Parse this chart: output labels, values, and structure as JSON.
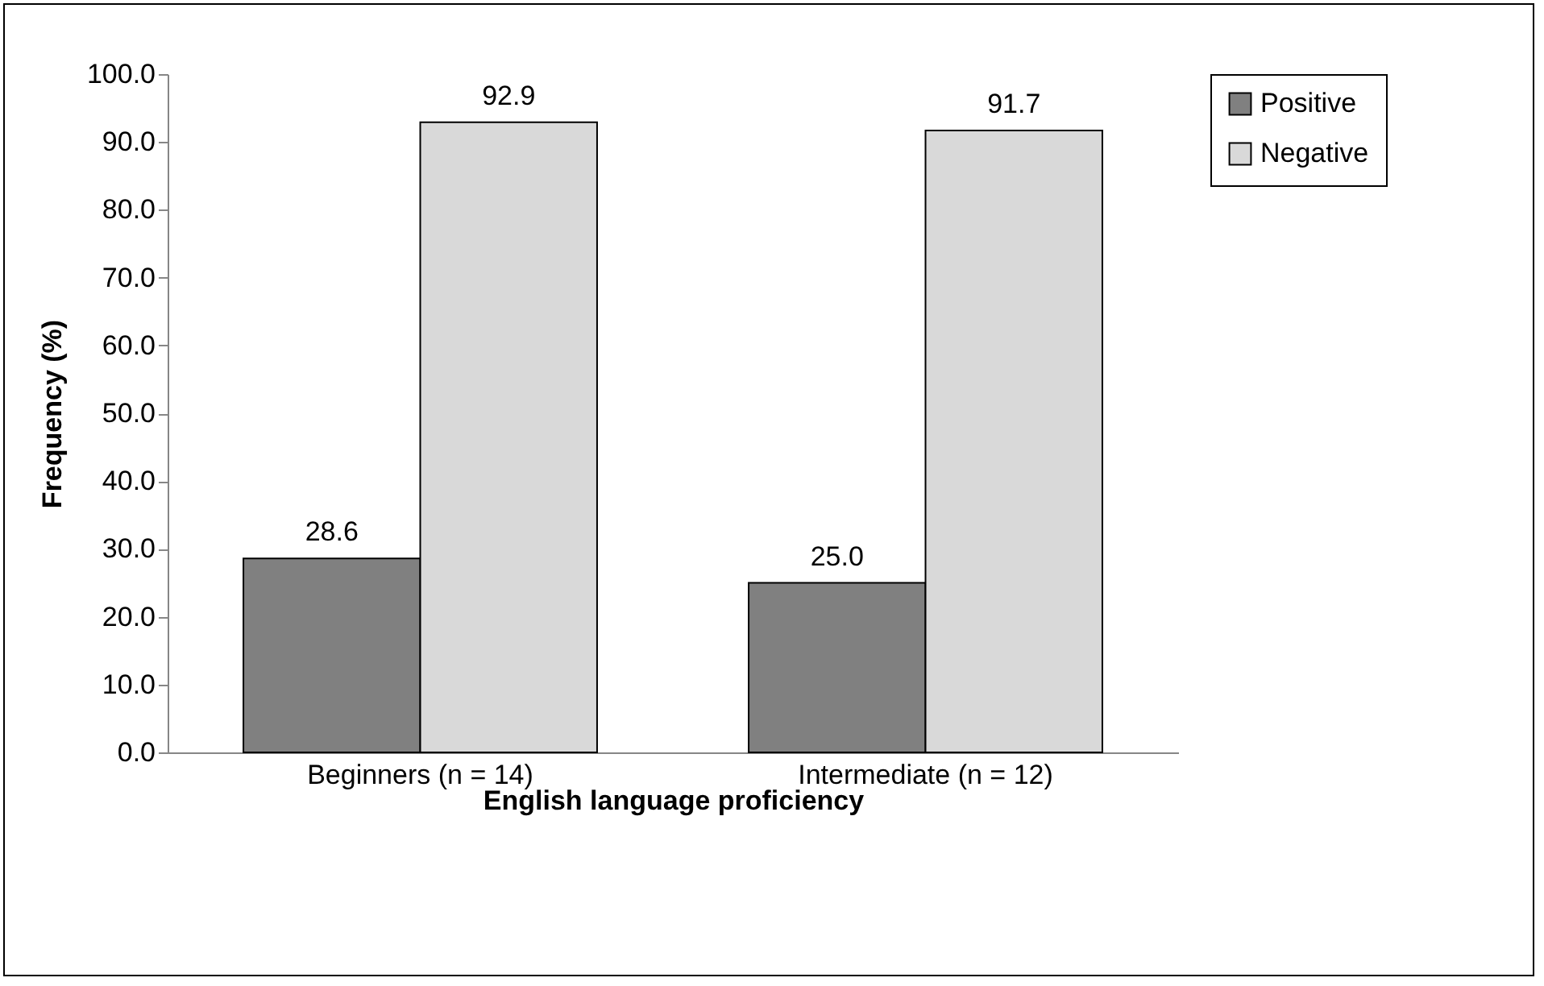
{
  "chart_data": {
    "type": "bar",
    "xlabel": "English language proficiency",
    "ylabel": "Frequency (%)",
    "categories": [
      "Beginners (n = 14)",
      "Intermediate (n = 12)"
    ],
    "series": [
      {
        "name": "Positive",
        "color": "#808080",
        "values": [
          28.6,
          25.0
        ],
        "value_labels": [
          "28.6",
          "25.0"
        ]
      },
      {
        "name": "Negative",
        "color": "#d9d9d9",
        "values": [
          92.9,
          91.7
        ],
        "value_labels": [
          "92.9",
          "91.7"
        ]
      }
    ],
    "ylim": [
      0,
      100
    ],
    "yticks": [
      {
        "value": 0,
        "label": "0.0"
      },
      {
        "value": 10,
        "label": "10.0"
      },
      {
        "value": 20,
        "label": "20.0"
      },
      {
        "value": 30,
        "label": "30.0"
      },
      {
        "value": 40,
        "label": "40.0"
      },
      {
        "value": 50,
        "label": "50.0"
      },
      {
        "value": 60,
        "label": "60.0"
      },
      {
        "value": 70,
        "label": "70.0"
      },
      {
        "value": 80,
        "label": "80.0"
      },
      {
        "value": 90,
        "label": "90.0"
      },
      {
        "value": 100,
        "label": "100.0"
      }
    ],
    "grid": false,
    "legend": "right"
  }
}
